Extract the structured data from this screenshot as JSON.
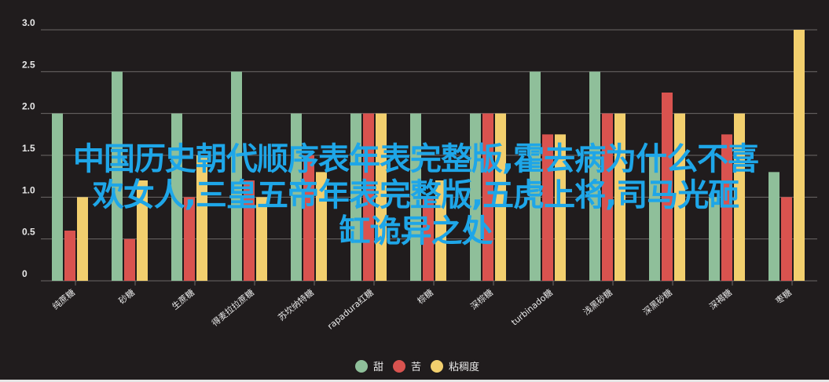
{
  "chart_data": {
    "type": "bar",
    "categories": [
      "纯蔗糖",
      "砂糖",
      "生蔗糖",
      "得麦拉拉蔗糖",
      "苏坎纳特糖",
      "rapadura红糖",
      "棕糖",
      "深棕糖",
      "turbinado糖",
      "浅黑砂糖",
      "深黑砂糖",
      "深褐糖",
      "枣糖"
    ],
    "series": [
      {
        "name": "甜",
        "color": "#8fbf9a",
        "values": [
          2.0,
          2.5,
          2.0,
          2.5,
          2.0,
          2.0,
          2.0,
          2.0,
          2.5,
          2.5,
          1.5,
          1.0,
          1.3
        ]
      },
      {
        "name": "苦",
        "color": "#d9534f",
        "values": [
          0.6,
          0.5,
          1.0,
          1.2,
          1.5,
          2.0,
          1.0,
          2.0,
          1.75,
          2.0,
          2.25,
          1.75,
          1.0
        ]
      },
      {
        "name": "粘稠度",
        "color": "#f2cf6e",
        "values": [
          1.0,
          1.2,
          1.5,
          1.0,
          1.3,
          2.0,
          1.2,
          2.0,
          1.75,
          2.0,
          2.0,
          2.0,
          3.0
        ]
      }
    ],
    "yticks": [
      "0",
      "0.5",
      "1.0",
      "1.5",
      "2.0",
      "2.5",
      "3.0"
    ],
    "ylim": [
      0,
      3
    ],
    "grid": true,
    "legend": "bottom"
  },
  "overlay_text": {
    "line1": "中国历史朝代顺序表年表完整版,霍去病为什么不喜",
    "line2": "欢女人,三皇五帝年表完整版,五虎上将,司马光砸",
    "line3": "缸诡异之处"
  }
}
